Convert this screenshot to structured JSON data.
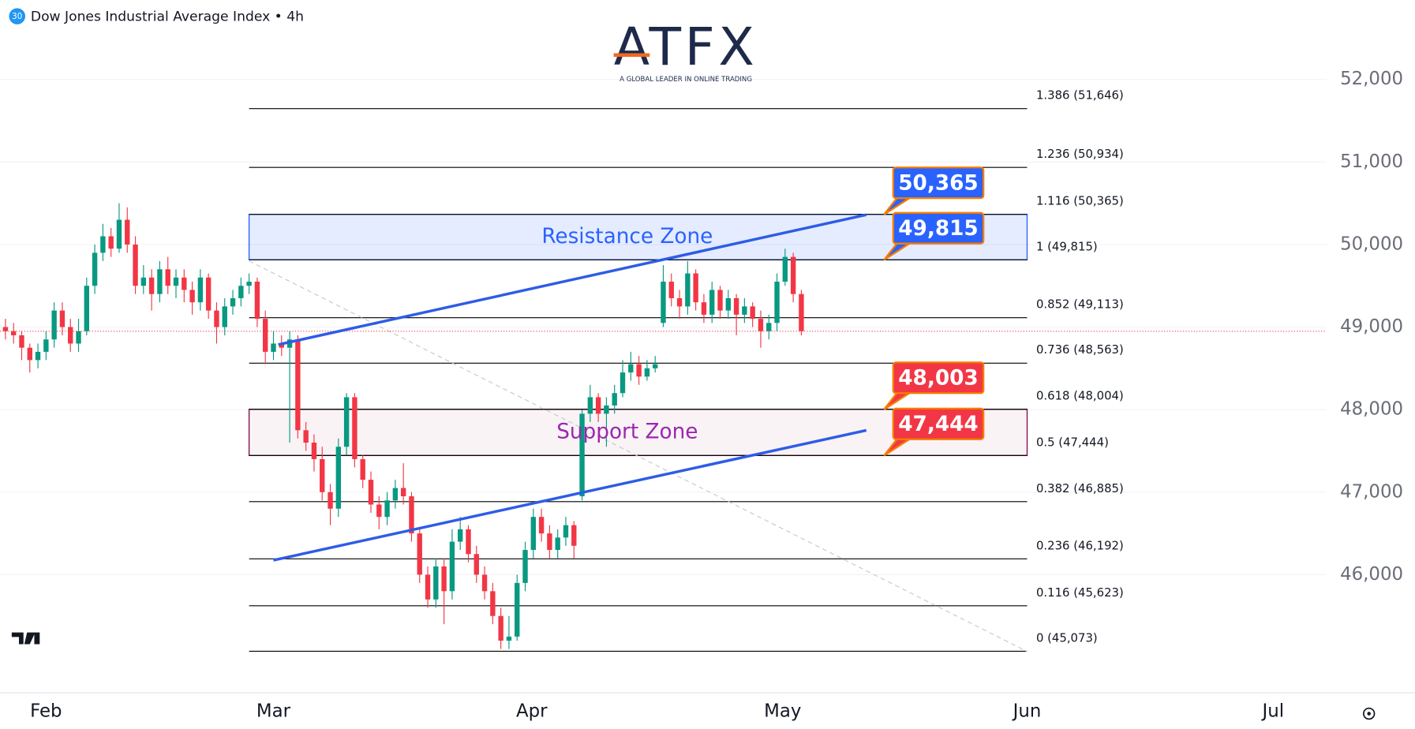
{
  "chart_data": {
    "type": "candlestick",
    "badge": "30",
    "title": "Dow Jones Industrial Average Index • 4h",
    "logo_text": "ATFX",
    "logo_tagline": "A GLOBAL LEADER IN ONLINE TRADING",
    "up_color": "#089981",
    "down_color": "#f23645",
    "xlim": [
      -5.67,
      157.67
    ],
    "ylim": [
      44568,
      52962
    ],
    "xticks": [
      {
        "value": 0,
        "label": "Feb"
      },
      {
        "value": 28,
        "label": "Mar"
      },
      {
        "value": 59.8,
        "label": "Apr"
      },
      {
        "value": 90.7,
        "label": "May"
      },
      {
        "value": 120.8,
        "label": "Jun"
      },
      {
        "value": 151.1,
        "label": "Jul"
      }
    ],
    "yticks": [
      {
        "value": 46000,
        "label": "46,000"
      },
      {
        "value": 47000,
        "label": "47,000"
      },
      {
        "value": 48000,
        "label": "48,000"
      },
      {
        "value": 49000,
        "label": "49,000"
      },
      {
        "value": 50000,
        "label": "50,000"
      },
      {
        "value": 51000,
        "label": "51,000"
      },
      {
        "value": 52000,
        "label": "52,000"
      }
    ],
    "grid": true,
    "x": [
      -5,
      -4,
      -3,
      -2,
      -1,
      0,
      1,
      2,
      3,
      4,
      5,
      6,
      7,
      8,
      9,
      10,
      11,
      12,
      13,
      14,
      15,
      16,
      17,
      18,
      19,
      20,
      21,
      22,
      23,
      24,
      25,
      26,
      27,
      28,
      29,
      30,
      31,
      32,
      33,
      34,
      35,
      36,
      37,
      38,
      39,
      40,
      41,
      42,
      43,
      44,
      45,
      46,
      47,
      48,
      49,
      50,
      51,
      52,
      53,
      54,
      55,
      56,
      57,
      58,
      59,
      60,
      61,
      62,
      63,
      64,
      65,
      66,
      67,
      68,
      69,
      70,
      71,
      72,
      73,
      74,
      75,
      76,
      77,
      78,
      79,
      80,
      81,
      82,
      83,
      84,
      85,
      86,
      87,
      88,
      89,
      90,
      91,
      92,
      93
    ],
    "open": [
      49000,
      48950,
      48900,
      48750,
      48600,
      48700,
      48850,
      49200,
      49000,
      48800,
      48950,
      49500,
      49900,
      50100,
      49950,
      50300,
      50000,
      49500,
      49600,
      49400,
      49700,
      49500,
      49600,
      49450,
      49300,
      49600,
      49200,
      49000,
      49250,
      49350,
      49500,
      49550,
      49100,
      48700,
      48800,
      48750,
      48850,
      47750,
      47600,
      47400,
      47000,
      46800,
      47550,
      48150,
      47400,
      47150,
      46850,
      46700,
      46900,
      47050,
      46950,
      46500,
      46000,
      45700,
      46100,
      45800,
      46400,
      46550,
      46250,
      46000,
      45800,
      45500,
      45200,
      45250,
      45900,
      46300,
      46700,
      46500,
      46300,
      46450,
      46600,
      46950,
      47950,
      48150,
      47950,
      48050,
      48200,
      48450,
      48550,
      48400,
      48500,
      49050,
      49550,
      49350,
      49250,
      49650,
      49300,
      49150,
      49450,
      49200,
      49350,
      49150,
      49250,
      49100,
      48950,
      49050,
      49550,
      49850,
      49400
    ],
    "high": [
      49100,
      49050,
      48950,
      48800,
      48800,
      48950,
      49300,
      49300,
      49100,
      49100,
      49600,
      50000,
      50250,
      50200,
      50500,
      50450,
      50100,
      49750,
      49700,
      49800,
      49850,
      49700,
      49700,
      49550,
      49700,
      49650,
      49300,
      49350,
      49450,
      49600,
      49650,
      49600,
      49200,
      48950,
      48900,
      48950,
      48900,
      47850,
      47700,
      47550,
      47100,
      47650,
      48200,
      48200,
      47450,
      47250,
      46950,
      47000,
      47150,
      47350,
      47000,
      46550,
      46100,
      46200,
      46200,
      46550,
      46700,
      46600,
      46350,
      46100,
      45900,
      45600,
      45500,
      46000,
      46400,
      46800,
      46800,
      46600,
      46550,
      46700,
      46650,
      48000,
      48300,
      48200,
      48150,
      48300,
      48600,
      48700,
      48650,
      48600,
      48650,
      49750,
      49650,
      49450,
      49800,
      49700,
      49400,
      49550,
      49500,
      49450,
      49400,
      49350,
      49300,
      49200,
      49150,
      49650,
      49950,
      49900,
      49450
    ],
    "low": [
      48850,
      48800,
      48600,
      48450,
      48500,
      48600,
      48750,
      48900,
      48700,
      48700,
      48900,
      49400,
      49800,
      49850,
      49900,
      49900,
      49400,
      49400,
      49200,
      49300,
      49400,
      49350,
      49300,
      49150,
      49200,
      49100,
      48800,
      48900,
      49150,
      49250,
      49400,
      49000,
      48550,
      48600,
      48650,
      47600,
      47650,
      47500,
      47250,
      46900,
      46600,
      46700,
      47450,
      47300,
      47050,
      46750,
      46550,
      46600,
      46800,
      46850,
      46400,
      45900,
      45600,
      45600,
      45400,
      45700,
      46300,
      46150,
      45900,
      45700,
      45400,
      45100,
      45100,
      45200,
      45800,
      46200,
      46400,
      46200,
      46200,
      46350,
      46200,
      46900,
      47850,
      47850,
      47550,
      47950,
      48150,
      48350,
      48300,
      48350,
      48450,
      49000,
      49250,
      49100,
      49150,
      49200,
      49050,
      49050,
      49100,
      49100,
      48900,
      49050,
      49000,
      48750,
      48850,
      48950,
      49500,
      49300,
      48900
    ],
    "close": [
      48950,
      48900,
      48750,
      48600,
      48700,
      48850,
      49200,
      49000,
      48800,
      48950,
      49500,
      49900,
      50100,
      49950,
      50300,
      50000,
      49500,
      49600,
      49400,
      49700,
      49500,
      49600,
      49450,
      49300,
      49600,
      49200,
      49000,
      49250,
      49350,
      49500,
      49550,
      49100,
      48700,
      48800,
      48750,
      48850,
      47750,
      47600,
      47400,
      47000,
      46800,
      47550,
      48150,
      47400,
      47150,
      46850,
      46700,
      46900,
      47050,
      46950,
      46500,
      46000,
      45700,
      46100,
      45800,
      46400,
      46550,
      46250,
      46000,
      45800,
      45500,
      45200,
      45250,
      45900,
      46300,
      46700,
      46500,
      46300,
      46450,
      46600,
      46350,
      47950,
      48150,
      47950,
      48050,
      48200,
      48450,
      48550,
      48400,
      48500,
      48550,
      49550,
      49350,
      49250,
      49650,
      49300,
      49150,
      49450,
      49200,
      49350,
      49150,
      49250,
      49100,
      48950,
      49050,
      49550,
      49850,
      49400,
      48950
    ],
    "fib_range": [
      25,
      120.8
    ],
    "fib_levels": [
      {
        "value": 51646,
        "label": "1.386 (51,646)"
      },
      {
        "value": 50934,
        "label": "1.236 (50,934)"
      },
      {
        "value": 50365,
        "label": "1.116 (50,365)"
      },
      {
        "value": 49815,
        "label": "1 (49,815)"
      },
      {
        "value": 49113,
        "label": "0.852 (49,113)"
      },
      {
        "value": 48563,
        "label": "0.736 (48,563)"
      },
      {
        "value": 48004,
        "label": "0.618 (48,004)"
      },
      {
        "value": 47444,
        "label": "0.5 (47,444)"
      },
      {
        "value": 46885,
        "label": "0.382 (46,885)"
      },
      {
        "value": 46192,
        "label": "0.236 (46,192)"
      },
      {
        "value": 45623,
        "label": "0.116 (45,623)"
      },
      {
        "value": 45073,
        "label": "0 (45,073)"
      }
    ],
    "zones": [
      {
        "label": "Resistance Zone",
        "low": 49815,
        "high": 50365,
        "color": "#2962ff",
        "text_color": "#2962ff"
      },
      {
        "label": "Support Zone",
        "low": 47444,
        "high": 48003,
        "color": "#880e4f",
        "text_color": "#9c27b0"
      }
    ],
    "trend_lines": [
      {
        "x": [
          28.6,
          101
        ],
        "y": [
          48787,
          50361
        ],
        "color": "#2e5ce6"
      },
      {
        "x": [
          28,
          101
        ],
        "y": [
          46175,
          47749
        ],
        "color": "#2e5ce6"
      }
    ],
    "diagonal": {
      "x": [
        25,
        120.8
      ],
      "y": [
        49800,
        45070
      ],
      "color": "#c8c8c8"
    },
    "callouts": [
      {
        "value": 50365,
        "label": "50,365",
        "color": "#2962ff"
      },
      {
        "value": 49815,
        "label": "49,815",
        "color": "#2962ff"
      },
      {
        "value": 48003,
        "label": "48,003",
        "color": "#f23645"
      },
      {
        "value": 47444,
        "label": "47,444",
        "color": "#f23645"
      }
    ],
    "callout_x": 103.2
  }
}
